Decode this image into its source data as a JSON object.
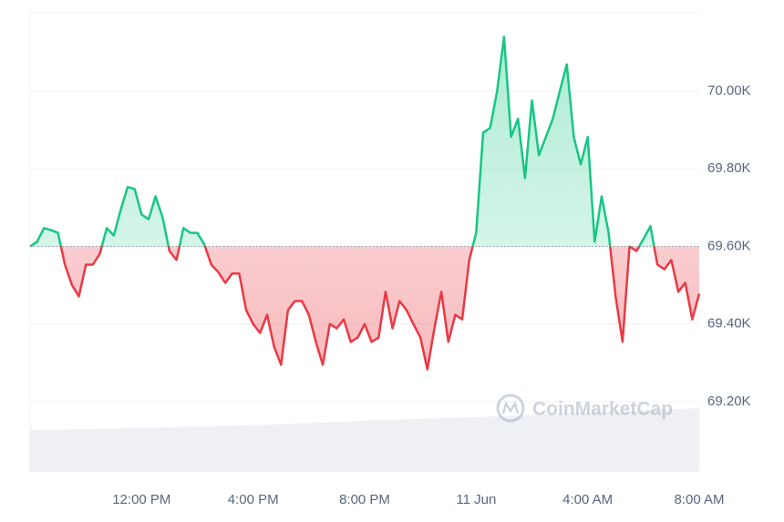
{
  "chart_data": {
    "type": "line",
    "watermark": "CoinMarketCap",
    "baseline": 69600,
    "color_up": "#16c784",
    "color_down": "#ea3943",
    "categories": [
      null,
      null,
      null,
      null,
      null,
      null,
      null,
      null,
      null,
      null,
      null,
      null,
      null,
      null,
      null,
      null,
      "12:00 PM",
      null,
      null,
      null,
      null,
      null,
      null,
      null,
      null,
      null,
      null,
      null,
      null,
      null,
      null,
      null,
      "4:00 PM",
      null,
      null,
      null,
      null,
      null,
      null,
      null,
      null,
      null,
      null,
      null,
      null,
      null,
      null,
      null,
      "8:00 PM",
      null,
      null,
      null,
      null,
      null,
      null,
      null,
      null,
      null,
      null,
      null,
      null,
      null,
      null,
      null,
      "11 Jun",
      null,
      null,
      null,
      null,
      null,
      null,
      null,
      null,
      null,
      null,
      null,
      null,
      null,
      null,
      null,
      "4:00 AM",
      null,
      null,
      null,
      null,
      null,
      null,
      null,
      null,
      null,
      null,
      null,
      null,
      null,
      null,
      null,
      "8:00 AM"
    ],
    "values": [
      69600,
      69612,
      69647,
      69642,
      69635,
      69553,
      69501,
      69471,
      69553,
      69553,
      69581,
      69647,
      69628,
      69694,
      69753,
      69748,
      69682,
      69670,
      69729,
      69675,
      69588,
      69565,
      69647,
      69635,
      69635,
      69605,
      69553,
      69534,
      69506,
      69530,
      69530,
      69436,
      69400,
      69377,
      69424,
      69342,
      69295,
      69436,
      69459,
      69459,
      69424,
      69354,
      69295,
      69400,
      69389,
      69412,
      69354,
      69365,
      69400,
      69354,
      69365,
      69483,
      69389,
      69459,
      69436,
      69400,
      69365,
      69283,
      69389,
      69483,
      69354,
      69424,
      69412,
      69565,
      69635,
      69893,
      69905,
      70000,
      70140,
      69882,
      69929,
      69776,
      69976,
      69835,
      69882,
      69929,
      70000,
      70069,
      69882,
      69811,
      69882,
      69612,
      69729,
      69635,
      69471,
      69354,
      69600,
      69588,
      69619,
      69652,
      69553,
      69541,
      69565,
      69483,
      69506,
      69412,
      69478
    ],
    "ylim": [
      69019,
      70202
    ],
    "yticks": [
      {
        "value": 69200,
        "label": "69.20K"
      },
      {
        "value": 69400,
        "label": "69.40K"
      },
      {
        "value": 69600,
        "label": "69.60K"
      },
      {
        "value": 69800,
        "label": "69.80K"
      },
      {
        "value": 70000,
        "label": "70.00K"
      }
    ],
    "grid": true
  }
}
